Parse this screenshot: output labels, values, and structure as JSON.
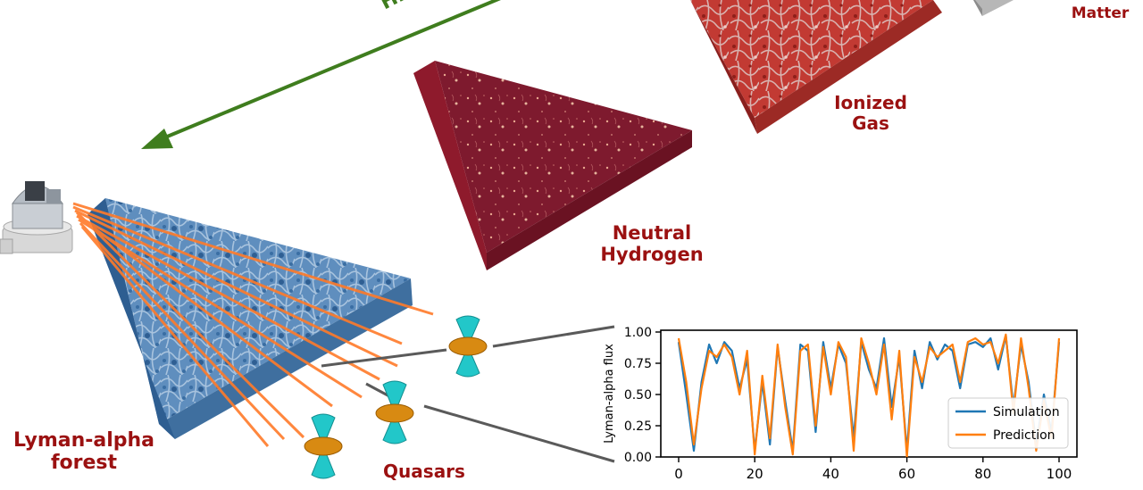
{
  "labels": {
    "dark_matter": "Dark\nMatter",
    "ionized_gas": "Ionized\nGas",
    "neutral_hydrogen": "Neutral\nHydrogen",
    "lyman_alpha_forest": "Lyman-alpha\nforest",
    "quasars": "Quasars",
    "arrow_text": "Hierarch"
  },
  "colors": {
    "label": "#9b1111",
    "arrow": "#3f7d1e",
    "simulation": "#1f77b4",
    "prediction": "#ff7f0e",
    "skewer": "#ff7b2a",
    "quasar_cone": "#22c7c9",
    "quasar_disk": "#d88a12"
  },
  "chart_data": {
    "type": "line",
    "ylabel": "Lyman-alpha flux",
    "xlim": [
      0,
      100
    ],
    "ylim": [
      0,
      1
    ],
    "xticks": [
      0,
      20,
      40,
      60,
      80,
      100
    ],
    "yticks": [
      "0.00",
      "0.25",
      "0.50",
      "0.75",
      "1.00"
    ],
    "legend_position": "bottom-right",
    "x": [
      0,
      2,
      4,
      6,
      8,
      10,
      12,
      14,
      16,
      18,
      20,
      22,
      24,
      26,
      28,
      30,
      32,
      34,
      36,
      38,
      40,
      42,
      44,
      46,
      48,
      50,
      52,
      54,
      56,
      58,
      60,
      62,
      64,
      66,
      68,
      70,
      72,
      74,
      76,
      78,
      80,
      82,
      84,
      86,
      88,
      90,
      92,
      94,
      96,
      98,
      100
    ],
    "series": [
      {
        "name": "Simulation",
        "values": [
          0.92,
          0.5,
          0.05,
          0.6,
          0.9,
          0.75,
          0.92,
          0.85,
          0.55,
          0.78,
          0.05,
          0.6,
          0.1,
          0.88,
          0.45,
          0.05,
          0.9,
          0.85,
          0.2,
          0.92,
          0.55,
          0.9,
          0.75,
          0.15,
          0.92,
          0.7,
          0.55,
          0.95,
          0.4,
          0.8,
          0.05,
          0.85,
          0.55,
          0.92,
          0.78,
          0.9,
          0.85,
          0.55,
          0.9,
          0.92,
          0.88,
          0.95,
          0.7,
          0.97,
          0.4,
          0.9,
          0.6,
          0.1,
          0.5,
          0.2,
          0.92
        ]
      },
      {
        "name": "Prediction",
        "values": [
          0.95,
          0.6,
          0.1,
          0.55,
          0.85,
          0.8,
          0.9,
          0.8,
          0.5,
          0.85,
          0.02,
          0.65,
          0.15,
          0.9,
          0.4,
          0.02,
          0.85,
          0.9,
          0.25,
          0.88,
          0.5,
          0.92,
          0.8,
          0.05,
          0.95,
          0.75,
          0.5,
          0.9,
          0.3,
          0.85,
          0.0,
          0.8,
          0.6,
          0.88,
          0.8,
          0.85,
          0.9,
          0.6,
          0.92,
          0.95,
          0.9,
          0.92,
          0.75,
          0.98,
          0.35,
          0.95,
          0.55,
          0.05,
          0.45,
          0.15,
          0.95
        ]
      }
    ]
  }
}
